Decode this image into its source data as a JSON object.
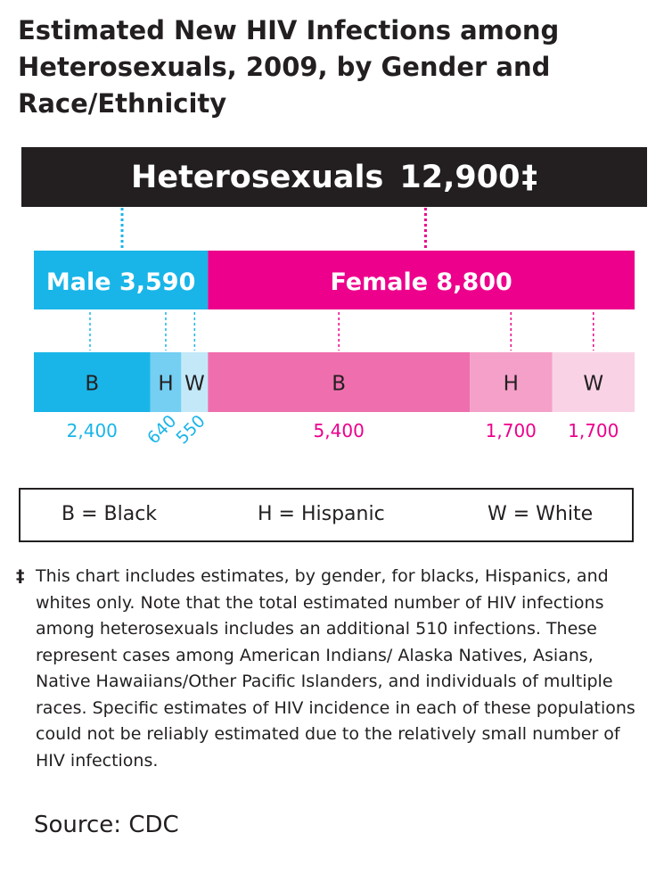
{
  "title": "Estimated New HIV Infections among Heterosexuals, 2009, by Gender and Race/Ethnicity",
  "total": {
    "label": "Heterosexuals",
    "value": "12,900",
    "mark": "‡"
  },
  "colors": {
    "total_bar": "#231f20",
    "male": "#19b5e8",
    "female": "#ec008c",
    "male_black": "#19b5e8",
    "male_hispanic": "#74cff2",
    "male_white": "#c3e9f9",
    "female_black": "#ef6fae",
    "female_hispanic": "#f4a0c8",
    "female_white": "#f9d3e5"
  },
  "legend": {
    "black": "B = Black",
    "hispanic": "H = Hispanic",
    "white": "W = White"
  },
  "footnote": {
    "mark": "‡",
    "text": "This chart includes estimates, by gender, for blacks, Hispanics, and whites only. Note that the total estimated number of HIV infections among heterosexuals includes an additional 510 infections. These represent cases among American Indians/ Alaska Natives, Asians, Native Hawaiians/Other Pacific Islanders, and individuals of multiple races. Specific estimates of HIV incidence in each of these populations could not be reliably estimated due to the relatively small number of HIV infections."
  },
  "source": "Source: CDC",
  "chart_data": {
    "type": "bar",
    "total": 12900,
    "genders": [
      {
        "name": "Male",
        "label": "Male 3,590",
        "value": 3590,
        "color": "#19b5e8"
      },
      {
        "name": "Female",
        "label": "Female 8,800",
        "value": 8800,
        "color": "#ec008c"
      }
    ],
    "segments": [
      {
        "gender": "Male",
        "code": "B",
        "value": 2400,
        "value_label": "2,400",
        "color": "#19b5e8",
        "text_color": "#19b5e8",
        "rotated": false
      },
      {
        "gender": "Male",
        "code": "H",
        "value": 640,
        "value_label": "640",
        "color": "#74cff2",
        "text_color": "#19b5e8",
        "rotated": true
      },
      {
        "gender": "Male",
        "code": "W",
        "value": 550,
        "value_label": "550",
        "color": "#c3e9f9",
        "text_color": "#19b5e8",
        "rotated": true
      },
      {
        "gender": "Female",
        "code": "B",
        "value": 5400,
        "value_label": "5,400",
        "color": "#ef6fae",
        "text_color": "#ec008c",
        "rotated": false
      },
      {
        "gender": "Female",
        "code": "H",
        "value": 1700,
        "value_label": "1,700",
        "color": "#f4a0c8",
        "text_color": "#ec008c",
        "rotated": false
      },
      {
        "gender": "Female",
        "code": "W",
        "value": 1700,
        "value_label": "1,700",
        "color": "#f9d3e5",
        "text_color": "#ec008c",
        "rotated": false
      }
    ]
  }
}
